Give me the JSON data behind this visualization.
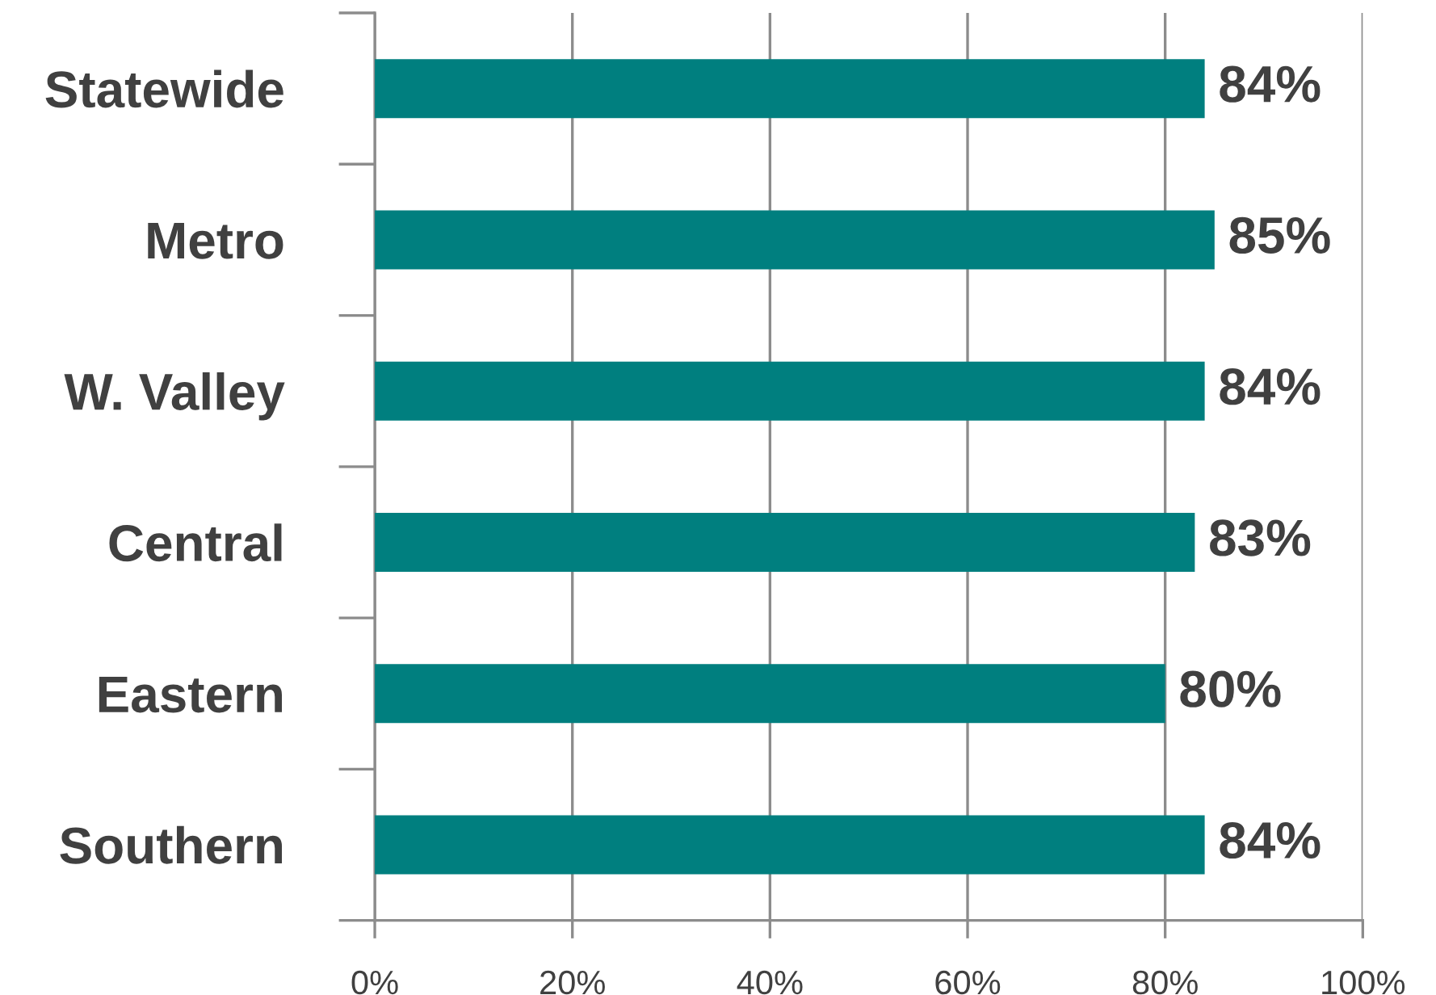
{
  "chart_data": {
    "type": "bar",
    "orientation": "horizontal",
    "categories": [
      "Statewide",
      "Metro",
      "W. Valley",
      "Central",
      "Eastern",
      "Southern"
    ],
    "values": [
      84,
      85,
      84,
      83,
      80,
      84
    ],
    "value_labels": [
      "84%",
      "85%",
      "84%",
      "83%",
      "80%",
      "84%"
    ],
    "color": "#007f7f",
    "xlim": [
      0,
      100
    ],
    "xticks": [
      {
        "value": 0,
        "label": "0%"
      },
      {
        "value": 20,
        "label": "20%"
      },
      {
        "value": 40,
        "label": "40%"
      },
      {
        "value": 60,
        "label": "60%"
      },
      {
        "value": 80,
        "label": "80%"
      },
      {
        "value": 100,
        "label": "100%"
      }
    ],
    "grid": "x",
    "legend": false
  }
}
